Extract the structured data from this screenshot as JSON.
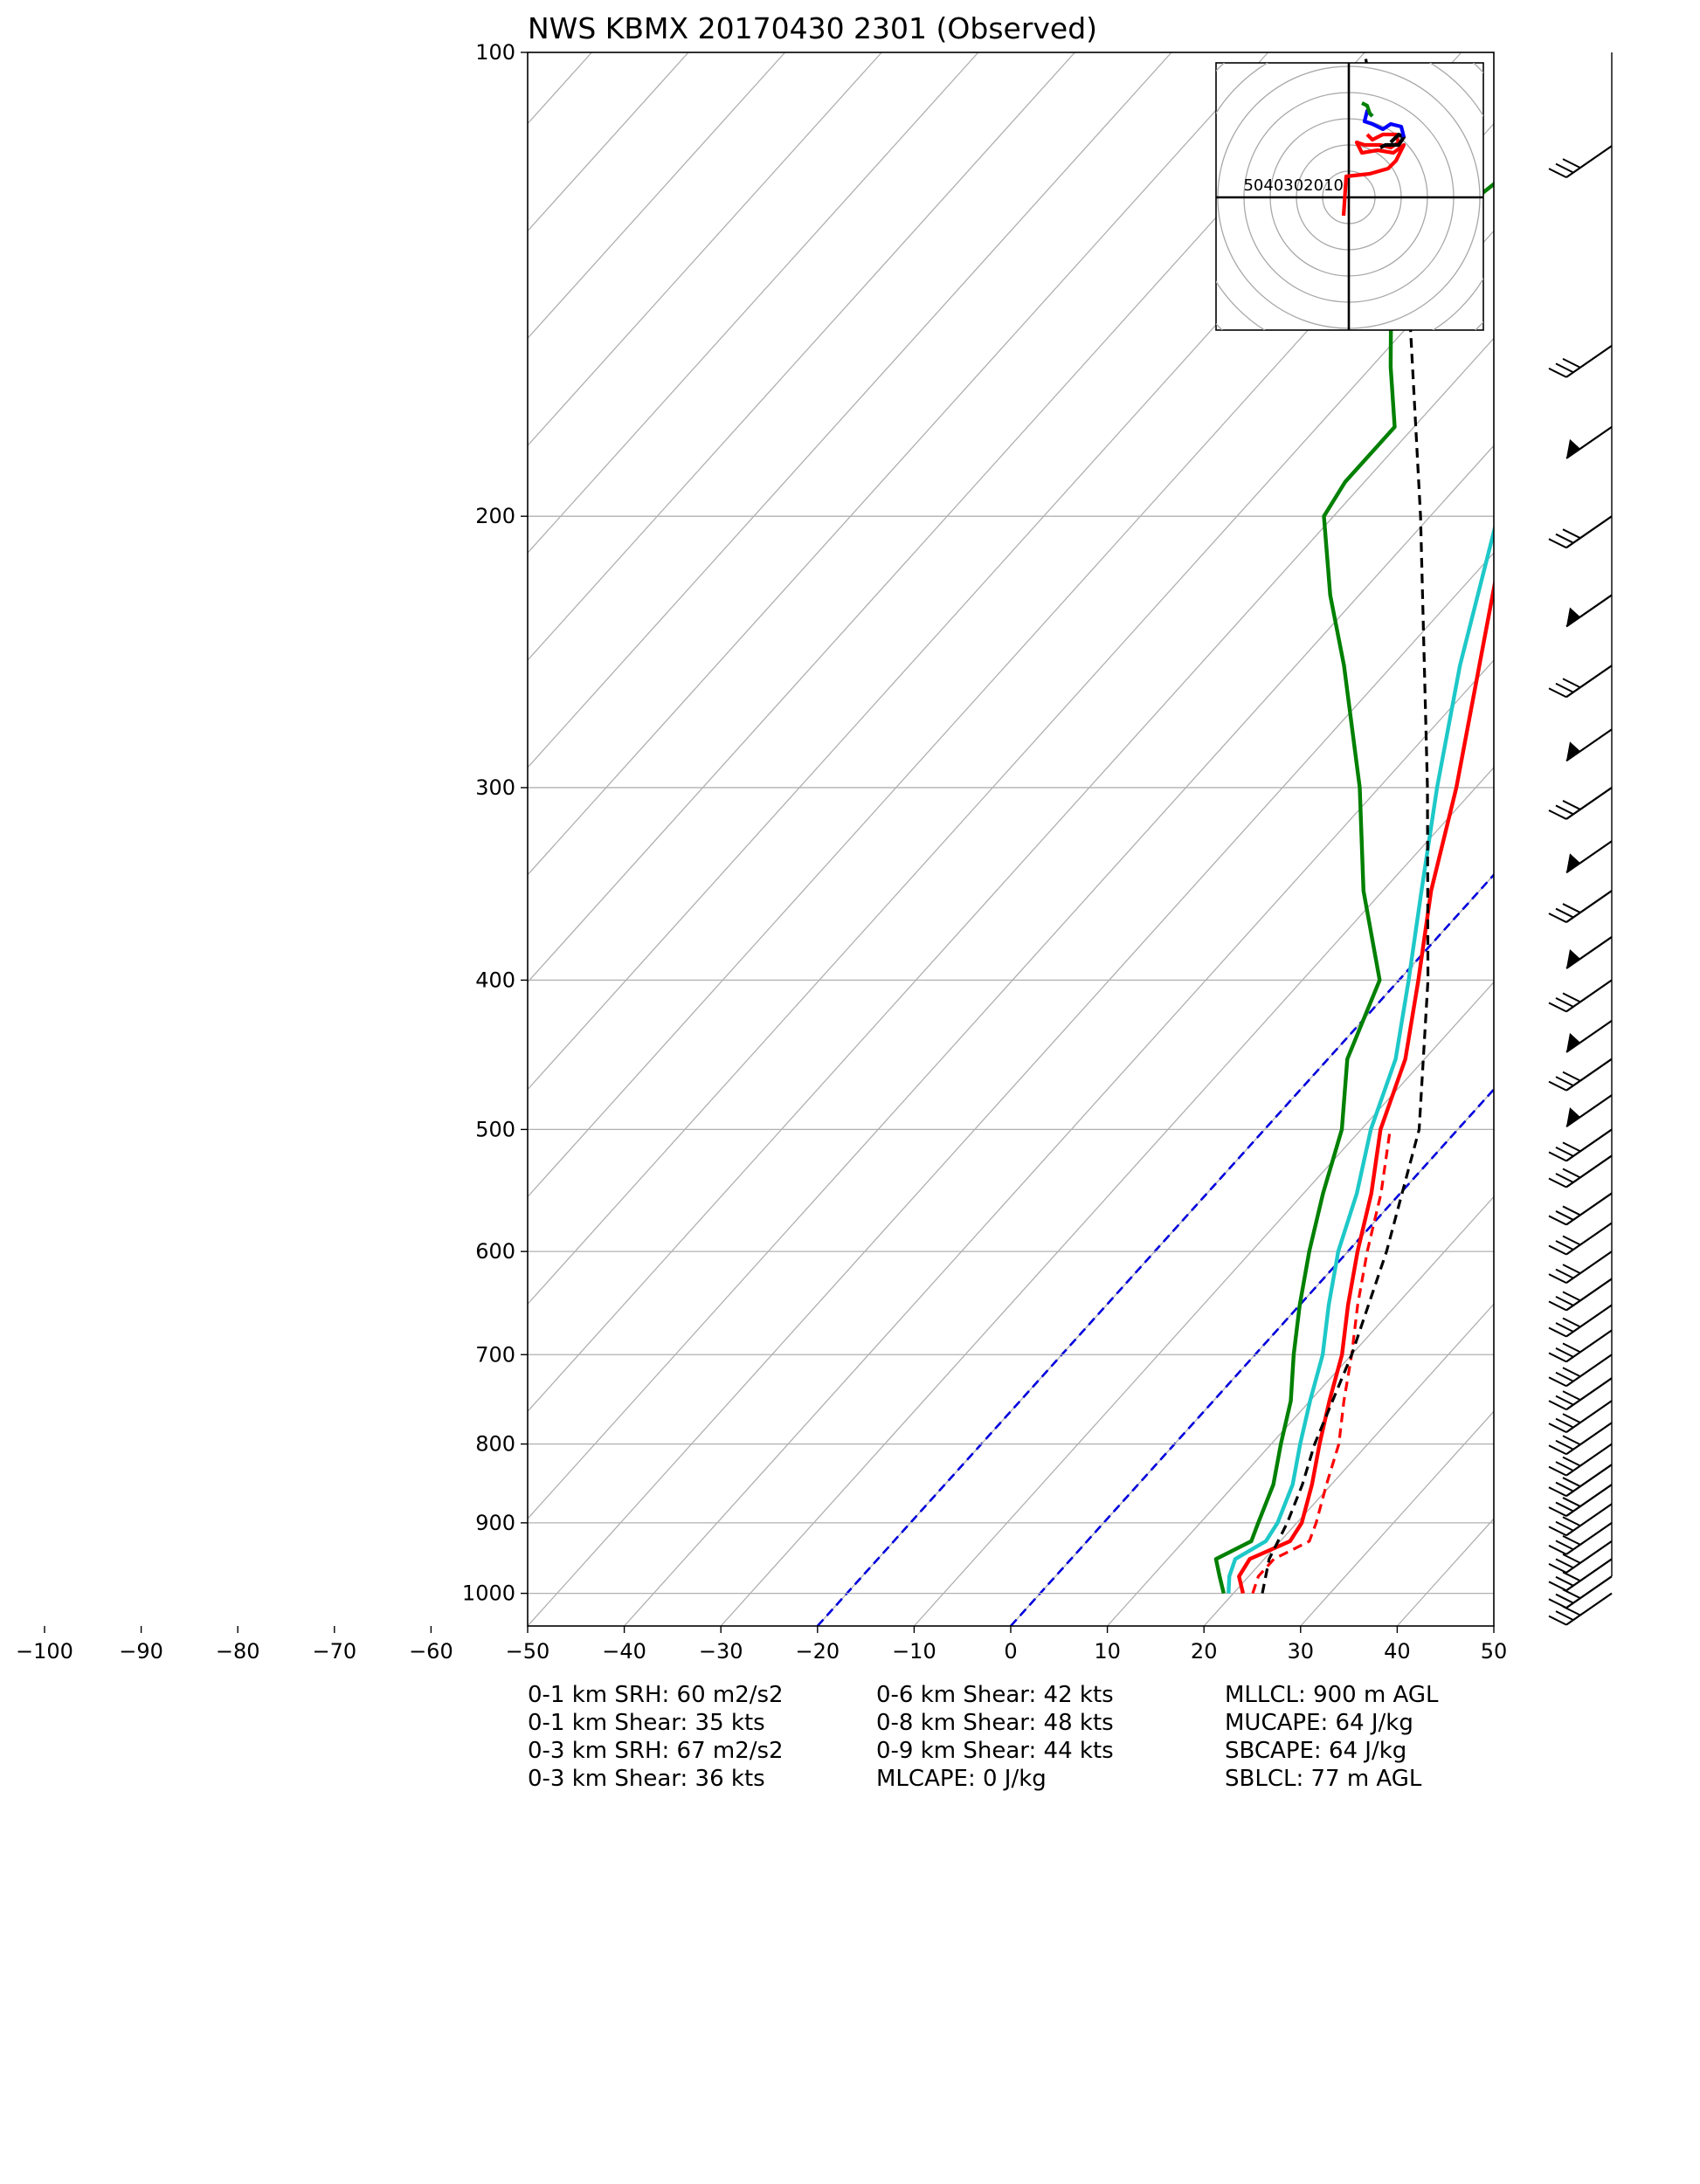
{
  "chart_data": {
    "type": "skew-t",
    "title": "NWS KBMX 20170430 2301   (Observed)",
    "xlim": [
      -50,
      50
    ],
    "ylim": [
      1050,
      100
    ],
    "y_log_scale": true,
    "x_ticks": [
      -100,
      -90,
      -80,
      -70,
      -60,
      -50,
      -40,
      -30,
      -20,
      -10,
      0,
      10,
      20,
      30,
      40,
      50
    ],
    "pressure_ticks": [
      100,
      200,
      300,
      400,
      500,
      600,
      700,
      800,
      900,
      1000
    ],
    "grid": true,
    "series": [
      {
        "color": "#ff0000",
        "style": "solid",
        "points": [
          [
            1000,
            21
          ],
          [
            975,
            19
          ],
          [
            950,
            18.5
          ],
          [
            925,
            21
          ],
          [
            900,
            20.5
          ],
          [
            850,
            18
          ],
          [
            800,
            15
          ],
          [
            750,
            12
          ],
          [
            700,
            9
          ],
          [
            650,
            5
          ],
          [
            600,
            1
          ],
          [
            550,
            -3
          ],
          [
            500,
            -8
          ],
          [
            450,
            -12
          ],
          [
            400,
            -18
          ],
          [
            350,
            -25
          ],
          [
            300,
            -32
          ],
          [
            250,
            -41
          ],
          [
            200,
            -52
          ],
          [
            175,
            -58
          ],
          [
            150,
            -65
          ],
          [
            140,
            -67
          ],
          [
            130,
            -67
          ],
          [
            120,
            -62
          ],
          [
            110,
            -60
          ],
          [
            100,
            -61
          ]
        ]
      },
      {
        "color": "#ff0000",
        "style": "dashed",
        "points": [
          [
            1000,
            22
          ],
          [
            975,
            21
          ],
          [
            950,
            21
          ],
          [
            925,
            23
          ],
          [
            900,
            22
          ],
          [
            850,
            19.5
          ],
          [
            800,
            17
          ],
          [
            750,
            13.5
          ],
          [
            700,
            10
          ],
          [
            650,
            6
          ],
          [
            600,
            2
          ],
          [
            550,
            -2
          ],
          [
            500,
            -7
          ]
        ]
      },
      {
        "color": "#1ec8c8",
        "style": "solid",
        "points": [
          [
            1000,
            19.5
          ],
          [
            975,
            18
          ],
          [
            950,
            17
          ],
          [
            925,
            18.5
          ],
          [
            900,
            18
          ],
          [
            850,
            16
          ],
          [
            800,
            13
          ],
          [
            750,
            10
          ],
          [
            700,
            7
          ],
          [
            650,
            3
          ],
          [
            600,
            -1
          ],
          [
            550,
            -4.5
          ],
          [
            500,
            -9
          ],
          [
            450,
            -13
          ],
          [
            400,
            -19
          ],
          [
            350,
            -26
          ],
          [
            300,
            -34
          ],
          [
            250,
            -43
          ],
          [
            200,
            -53
          ],
          [
            175,
            -59
          ],
          [
            150,
            -65
          ],
          [
            140,
            -67
          ],
          [
            130,
            -67
          ],
          [
            120,
            -62
          ],
          [
            110,
            -60
          ],
          [
            100,
            -61
          ]
        ]
      },
      {
        "color": "#008000",
        "style": "solid",
        "points": [
          [
            1000,
            19
          ],
          [
            975,
            17
          ],
          [
            950,
            15
          ],
          [
            925,
            17
          ],
          [
            900,
            16
          ],
          [
            850,
            14
          ],
          [
            800,
            11
          ],
          [
            750,
            8
          ],
          [
            700,
            4
          ],
          [
            650,
            0
          ],
          [
            600,
            -4
          ],
          [
            550,
            -8
          ],
          [
            500,
            -12
          ],
          [
            450,
            -18
          ],
          [
            400,
            -22
          ],
          [
            350,
            -32
          ],
          [
            300,
            -42
          ],
          [
            250,
            -55
          ],
          [
            225,
            -63
          ],
          [
            200,
            -71
          ],
          [
            190,
            -72
          ],
          [
            175,
            -72
          ],
          [
            160,
            -78
          ],
          [
            150,
            -82
          ],
          [
            140,
            -83
          ],
          [
            130,
            -86
          ],
          [
            120,
            -84
          ],
          [
            110,
            -83
          ],
          [
            100,
            -81
          ]
        ]
      },
      {
        "color": "#000000",
        "style": "dashed",
        "points": [
          [
            1000,
            23
          ],
          [
            950,
            20.5
          ],
          [
            900,
            19
          ],
          [
            850,
            17
          ],
          [
            800,
            14.5
          ],
          [
            700,
            10
          ],
          [
            600,
            4
          ],
          [
            500,
            -4
          ],
          [
            400,
            -17
          ],
          [
            300,
            -35
          ],
          [
            200,
            -61
          ],
          [
            150,
            -80
          ],
          [
            100,
            -110
          ]
        ]
      }
    ],
    "isotherms_marked": [
      -20,
      0
    ],
    "hodograph": {
      "ring_labels": [
        "50",
        "40",
        "30",
        "20",
        "10"
      ],
      "traces": [
        {
          "color": "#ff0000",
          "points": [
            [
              -2,
              -7
            ],
            [
              -1,
              8
            ],
            [
              8,
              9
            ],
            [
              15,
              11
            ],
            [
              18,
              14
            ],
            [
              21,
              20
            ],
            [
              17,
              17
            ],
            [
              11,
              18
            ],
            [
              5,
              17
            ],
            [
              3,
              21
            ],
            [
              6,
              20
            ],
            [
              12,
              20
            ],
            [
              16,
              19
            ],
            [
              19,
              21
            ],
            [
              18,
              24
            ],
            [
              13,
              24
            ],
            [
              9,
              22
            ],
            [
              7,
              24
            ]
          ]
        },
        {
          "color": "#000000",
          "points": [
            [
              12,
              19
            ],
            [
              14,
              20
            ],
            [
              16,
              20
            ],
            [
              19,
              20
            ],
            [
              21,
              23
            ],
            [
              19,
              24
            ],
            [
              16,
              21
            ]
          ]
        },
        {
          "color": "#0000ff",
          "points": [
            [
              21,
              23
            ],
            [
              20,
              27
            ],
            [
              16,
              28
            ],
            [
              13,
              26
            ],
            [
              9,
              28
            ],
            [
              6,
              29
            ],
            [
              7,
              33
            ],
            [
              9,
              31
            ]
          ]
        },
        {
          "color": "#008000",
          "points": [
            [
              9,
              31
            ],
            [
              8,
              32
            ],
            [
              7,
              35
            ],
            [
              5,
              36
            ]
          ]
        }
      ]
    },
    "wind_barb_pressures": [
      115,
      155,
      175,
      200,
      225,
      250,
      275,
      300,
      325,
      350,
      375,
      400,
      425,
      450,
      475,
      500,
      520,
      550,
      575,
      600,
      625,
      650,
      675,
      700,
      725,
      750,
      775,
      800,
      825,
      850,
      875,
      900,
      925,
      950,
      975,
      1000
    ]
  },
  "stats": {
    "col1": [
      "0-1 km SRH: 60 m2/s2",
      "0-1 km Shear: 35 kts",
      "0-3 km SRH: 67 m2/s2",
      "0-3 km Shear: 36 kts"
    ],
    "col2": [
      "0-6 km Shear: 42 kts",
      "0-8 km Shear: 48 kts",
      "0-9 km Shear: 44 kts",
      "MLCAPE: 0 J/kg"
    ],
    "col3": [
      "MLLCL: 900 m AGL",
      "MUCAPE: 64 J/kg",
      "SBCAPE: 64 J/kg",
      "SBLCL: 77 m AGL"
    ]
  }
}
